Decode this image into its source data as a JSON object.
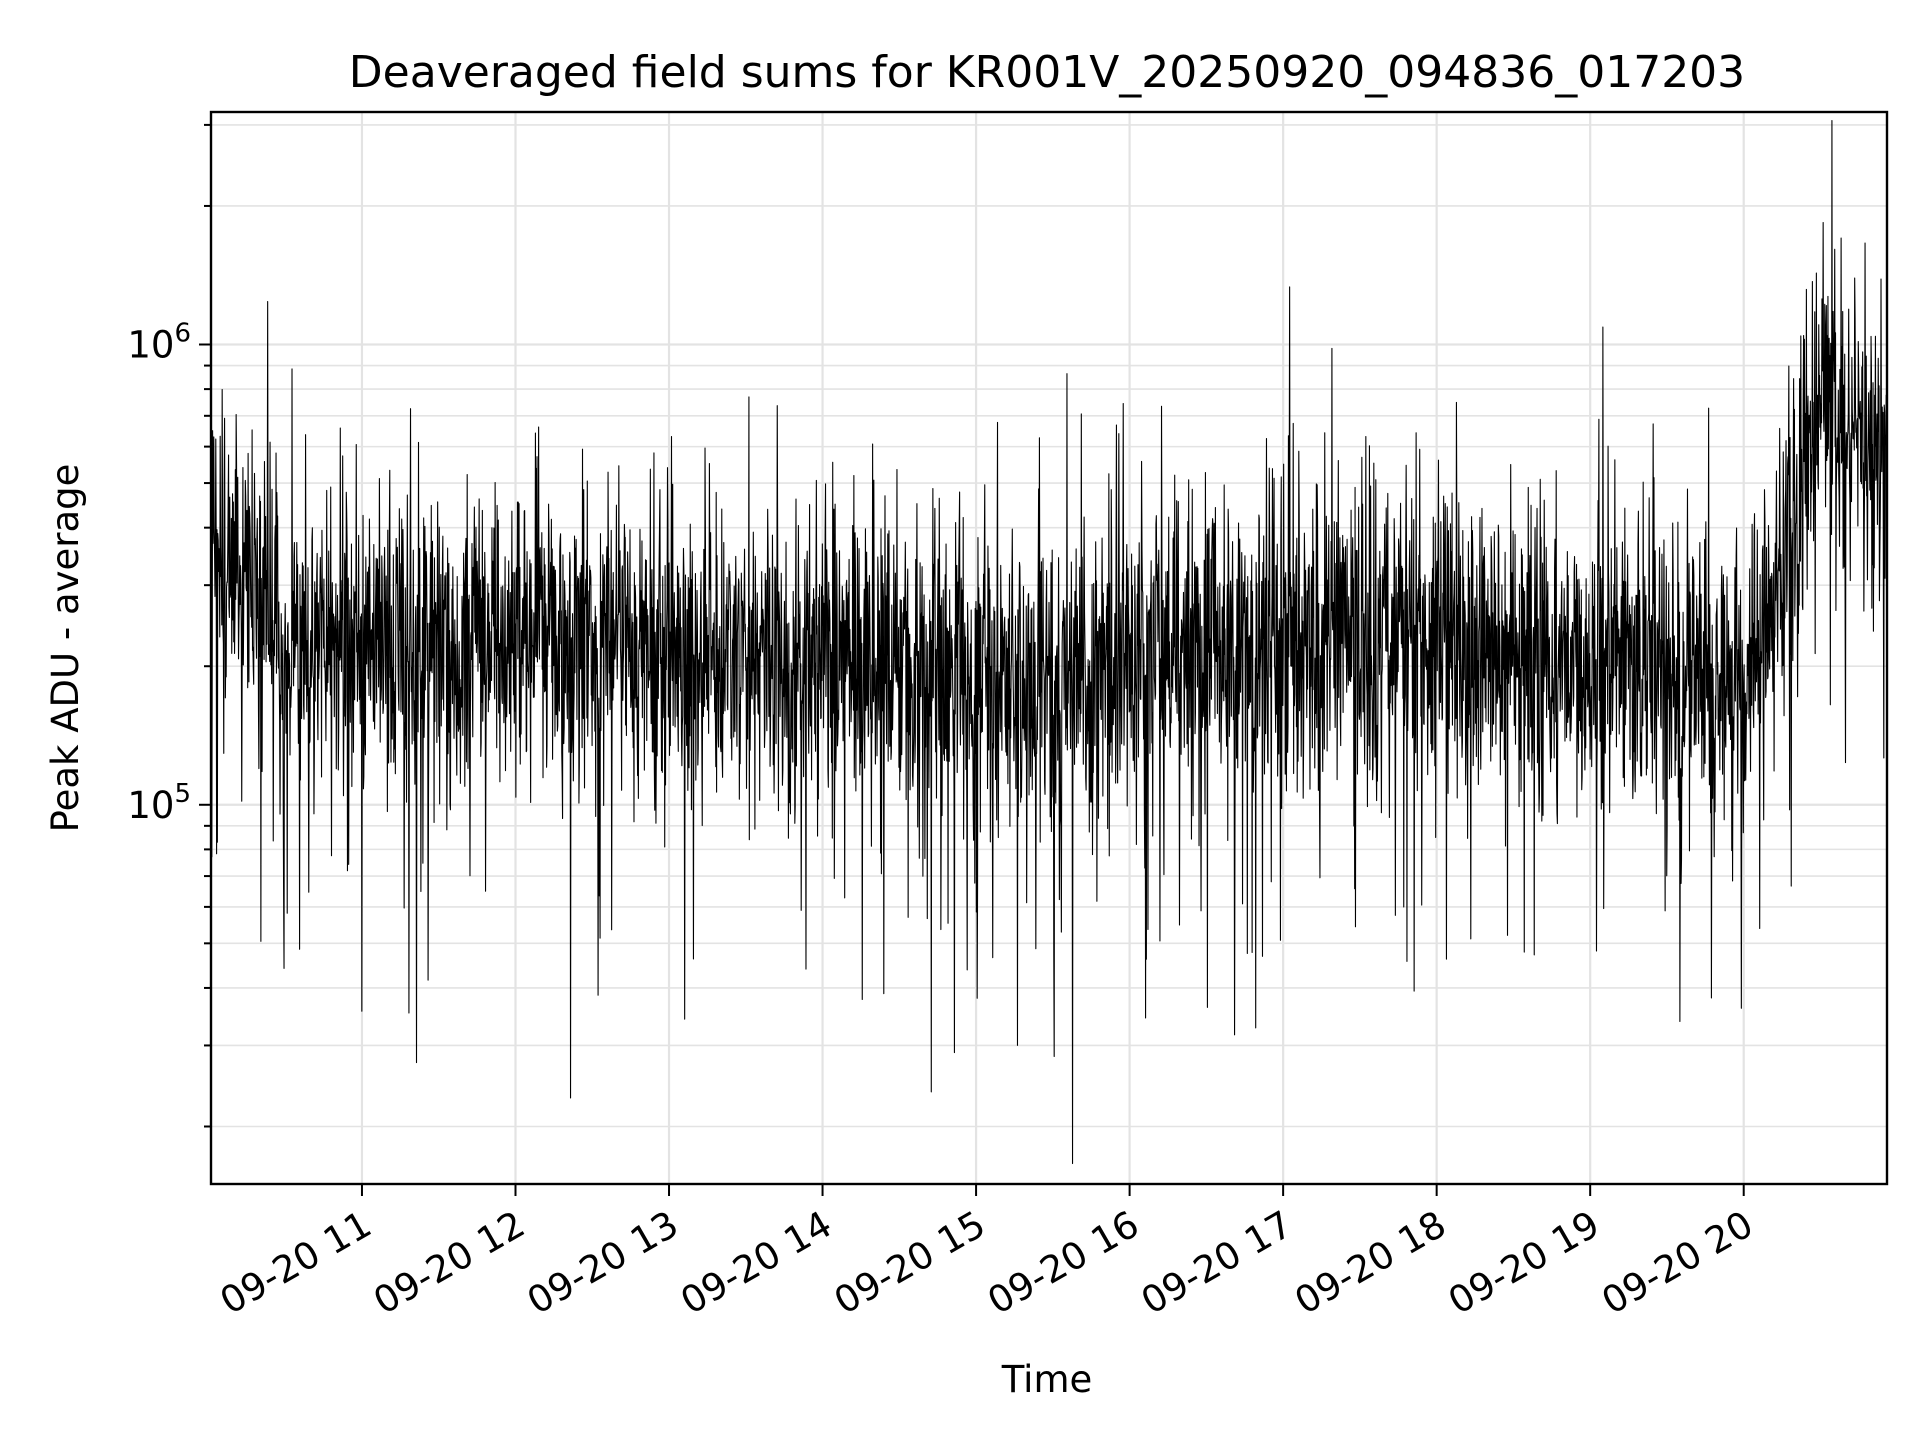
{
  "chart_data": {
    "type": "line",
    "title": "Deaveraged field sums for KR001V_20250920_094836_017203",
    "xlabel": "Time",
    "ylabel": "Peak ADU - average",
    "x_range": [
      "2025-09-20 10:01",
      "2025-09-20 20:56"
    ],
    "y_scale": "log",
    "ylim": [
      15000,
      3200000
    ],
    "grid": true,
    "line_color": "#000000",
    "x_ticks": [
      "09-20 11",
      "09-20 12",
      "09-20 13",
      "09-20 14",
      "09-20 15",
      "09-20 16",
      "09-20 17",
      "09-20 18",
      "09-20 19",
      "09-20 20"
    ],
    "y_ticks": [
      {
        "value": 100000,
        "base": "10",
        "exp": "5"
      },
      {
        "value": 1000000,
        "base": "10",
        "exp": "6"
      }
    ],
    "series": [
      {
        "x": [
          "10:01",
          "10:15",
          "10:30",
          "10:45",
          "11:00",
          "11:15",
          "11:30",
          "11:45",
          "12:00",
          "12:15",
          "12:30",
          "12:45",
          "13:00",
          "13:15",
          "13:30",
          "13:45",
          "14:00",
          "14:15",
          "14:30",
          "14:45",
          "15:00",
          "15:15",
          "15:30",
          "15:45",
          "16:00",
          "16:15",
          "16:30",
          "16:45",
          "17:00",
          "17:15",
          "17:30",
          "17:45",
          "18:00",
          "18:15",
          "18:30",
          "18:45",
          "19:00",
          "19:15",
          "19:30",
          "19:45",
          "20:00",
          "20:15",
          "20:30",
          "20:45",
          "20:56"
        ],
        "values": [
          420000,
          300000,
          230000,
          220000,
          230000,
          220000,
          240000,
          225000,
          230000,
          230000,
          225000,
          215000,
          210000,
          205000,
          200000,
          205000,
          210000,
          205000,
          200000,
          195000,
          190000,
          185000,
          180000,
          190000,
          200000,
          215000,
          225000,
          230000,
          235000,
          240000,
          230000,
          245000,
          240000,
          230000,
          220000,
          210000,
          205000,
          200000,
          195000,
          190000,
          200000,
          320000,
          800000,
          650000,
          550000
        ]
      }
    ]
  }
}
